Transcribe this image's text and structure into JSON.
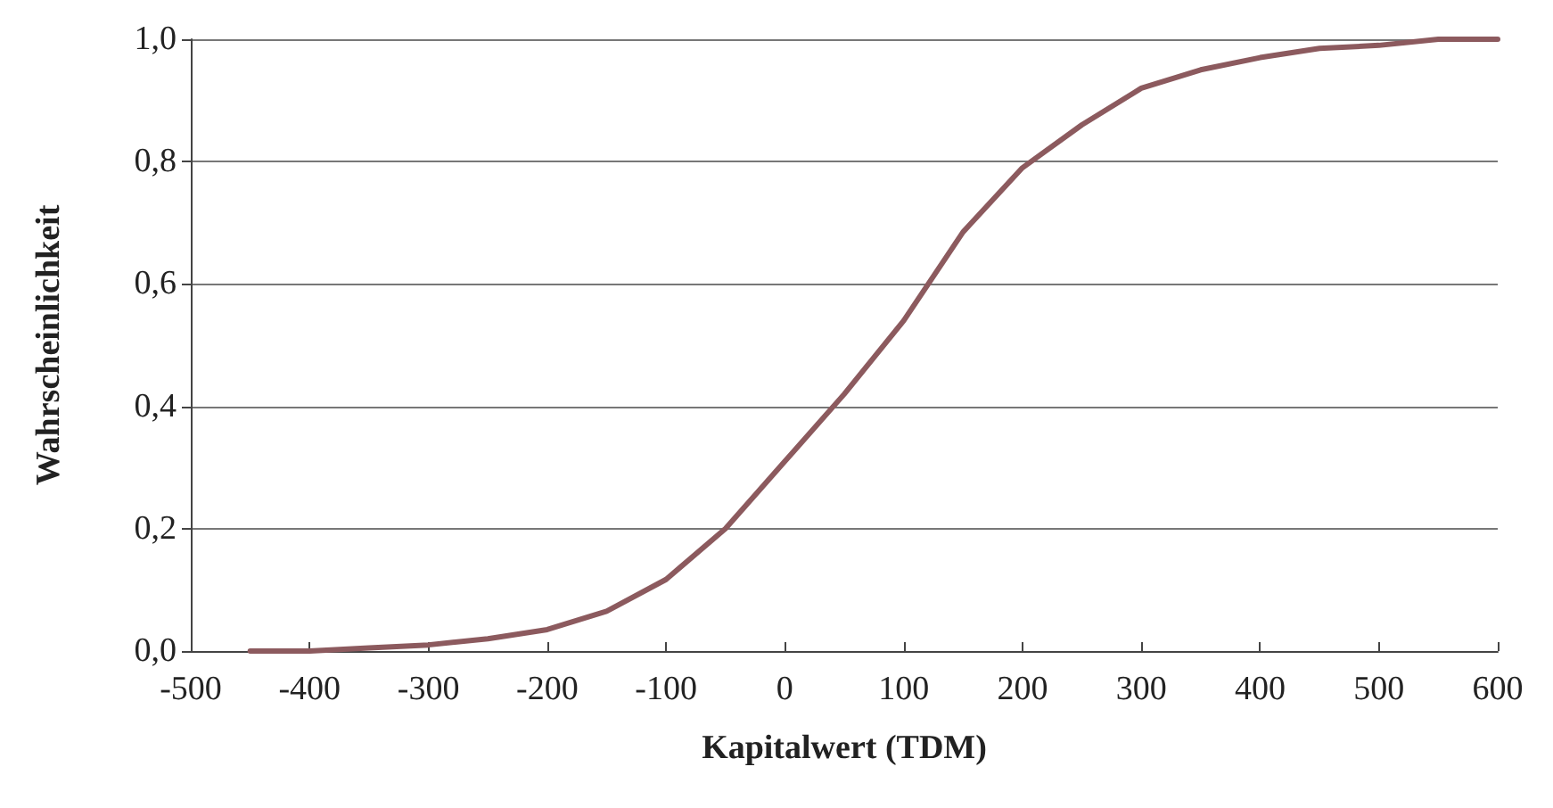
{
  "chart_data": {
    "type": "line",
    "xlabel": "Kapitalwert (TDM)",
    "ylabel": "Wahrscheinlichkeit",
    "series": [
      {
        "color": "#8c5a5e",
        "x": [
          -450,
          -400,
          -350,
          -300,
          -250,
          -200,
          -150,
          -100,
          -50,
          0,
          50,
          100,
          150,
          200,
          250,
          300,
          350,
          400,
          450,
          500,
          550,
          600
        ],
        "values": [
          0,
          0,
          0.005,
          0.01,
          0.02,
          0.035,
          0.065,
          0.117,
          0.2,
          0.31,
          0.42,
          0.54,
          0.685,
          0.79,
          0.86,
          0.92,
          0.95,
          0.97,
          0.985,
          0.99,
          1.0,
          1.0
        ]
      }
    ],
    "xlim": [
      -500,
      600
    ],
    "xticks": [
      -500,
      -400,
      -300,
      -200,
      -100,
      0,
      100,
      200,
      300,
      400,
      500,
      600
    ],
    "ylim": [
      0,
      1
    ],
    "yticks": [
      {
        "value": 0,
        "label": "0,0"
      },
      {
        "value": 0.2,
        "label": "0,2"
      },
      {
        "value": 0.4,
        "label": "0,4"
      },
      {
        "value": 0.6,
        "label": "0,6"
      },
      {
        "value": 0.8,
        "label": "0,8"
      },
      {
        "value": 1,
        "label": "1,0"
      }
    ],
    "grid": "y",
    "marker": "none",
    "line_style": "solid"
  }
}
